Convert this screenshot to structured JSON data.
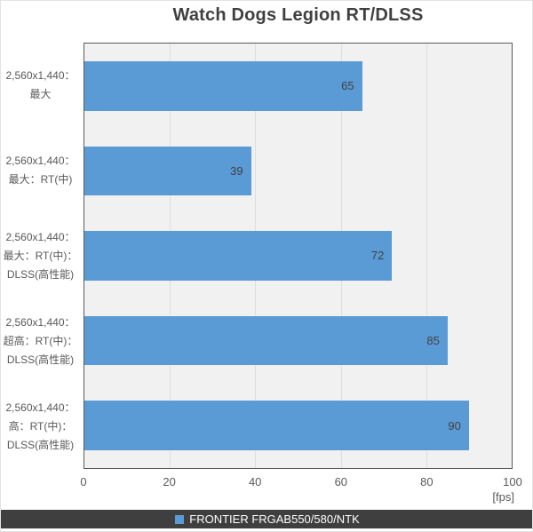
{
  "title": "Watch Dogs Legion RT/DLSS",
  "chart_data": {
    "type": "bar",
    "orientation": "horizontal",
    "title": "Watch Dogs Legion RT/DLSS",
    "categories": [
      "2,560x1,440：最大",
      "2,560x1,440：最大：RT(中)",
      "2,560x1,440：最大：RT(中)：DLSS(高性能)",
      "2,560x1,440：超高：RT(中)：DLSS(高性能)",
      "2,560x1,440：高：RT(中)：DLSS(高性能)"
    ],
    "category_lines": [
      [
        "2,560x1,440：",
        "最大"
      ],
      [
        "2,560x1,440：",
        "最大：RT(中)"
      ],
      [
        "2,560x1,440：",
        "最大：RT(中)：",
        "DLSS(高性能)"
      ],
      [
        "2,560x1,440：",
        "超高：RT(中)：",
        "DLSS(高性能)"
      ],
      [
        "2,560x1,440：",
        "高：RT(中)：",
        "DLSS(高性能)"
      ]
    ],
    "series": [
      {
        "name": "FRONTIER FRGAB550/580/NTK",
        "values": [
          65,
          39,
          72,
          85,
          90
        ]
      }
    ],
    "values": [
      65,
      39,
      72,
      85,
      90
    ],
    "xlim": [
      0,
      100
    ],
    "x_ticks": [
      0,
      20,
      40,
      60,
      80,
      100
    ],
    "unit_label": "[fps]",
    "grid": "vertical major gridlines every 20 units",
    "legend": {
      "position": "bottom",
      "label": "FRONTIER FRGAB550/580/NTK",
      "marker_color": "#5B9BD5"
    },
    "colors": {
      "bar": "#5B9BD5",
      "plot_background": "#F1F1F1",
      "gridline": "#DEDEDE",
      "axis_border": "#595959",
      "title_text": "#404040",
      "axis_text": "#595959",
      "value_label_text": "#404040",
      "legend_background": "#3F3F3F",
      "legend_text": "#FFFFFF"
    }
  }
}
